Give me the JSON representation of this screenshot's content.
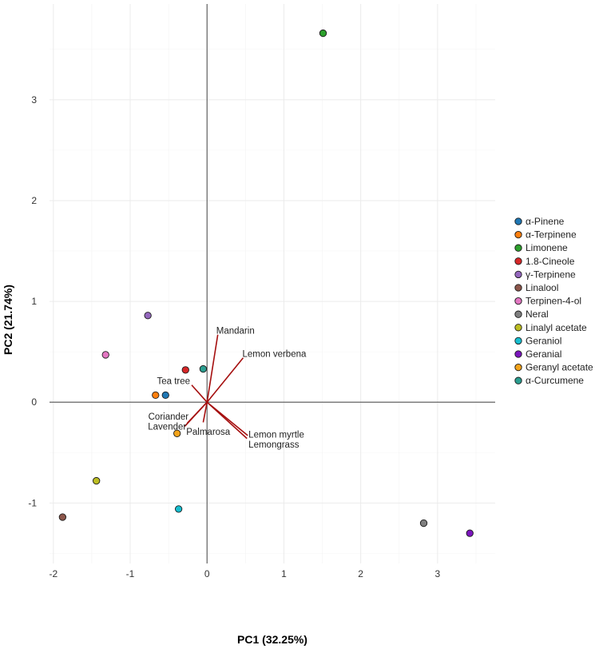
{
  "chart_data": {
    "type": "scatter",
    "title": "",
    "xlabel": "PC1 (32.25%)",
    "ylabel": "PC2 (21.74%)",
    "xlim": [
      -2.05,
      3.75
    ],
    "ylim": [
      -1.6,
      3.95
    ],
    "xticks": [
      -2,
      -1,
      0,
      1,
      2,
      3
    ],
    "yticks": [
      -1,
      0,
      1,
      2,
      3
    ],
    "grid": true,
    "legend_position": "right",
    "points": [
      {
        "name": "α-Pinene",
        "x": -0.54,
        "y": 0.07,
        "color": "#1f77b4"
      },
      {
        "name": "α-Terpinene",
        "x": -0.67,
        "y": 0.07,
        "color": "#ff7f0e"
      },
      {
        "name": "Limonene",
        "x": 1.51,
        "y": 3.66,
        "color": "#2ca02c"
      },
      {
        "name": "1.8-Cineole",
        "x": -0.28,
        "y": 0.32,
        "color": "#d62728"
      },
      {
        "name": "γ-Terpinene",
        "x": -0.77,
        "y": 0.86,
        "color": "#9467bd"
      },
      {
        "name": "Linalool",
        "x": -1.88,
        "y": -1.14,
        "color": "#8c564b"
      },
      {
        "name": "Terpinen-4-ol",
        "x": -1.32,
        "y": 0.47,
        "color": "#e377c2"
      },
      {
        "name": "Neral",
        "x": 2.82,
        "y": -1.2,
        "color": "#7f7f7f"
      },
      {
        "name": "Linalyl acetate",
        "x": -1.44,
        "y": -0.78,
        "color": "#bcbd22"
      },
      {
        "name": "Geraniol",
        "x": -0.37,
        "y": -1.06,
        "color": "#17becf"
      },
      {
        "name": "Geranial",
        "x": 3.42,
        "y": -1.3,
        "color": "#7b15bd"
      },
      {
        "name": "Geranyl acetate",
        "x": -0.39,
        "y": -0.31,
        "color": "#f2a31b"
      },
      {
        "name": "α-Curcumene",
        "x": -0.05,
        "y": 0.33,
        "color": "#2a9d8f"
      }
    ],
    "loadings": [
      {
        "name": "Mandarin",
        "x": 0.14,
        "y": 0.67,
        "label_x": 0.12,
        "label_y": 0.71,
        "anchor": "start"
      },
      {
        "name": "Lemon verbena",
        "x": 0.47,
        "y": 0.44,
        "label_x": 0.46,
        "label_y": 0.48,
        "anchor": "start"
      },
      {
        "name": "Tea tree",
        "x": -0.2,
        "y": 0.17,
        "label_x": -0.22,
        "label_y": 0.21,
        "anchor": "end"
      },
      {
        "name": "Coriander",
        "x": -0.26,
        "y": -0.21,
        "label_x": -0.24,
        "label_y": -0.14,
        "anchor": "end"
      },
      {
        "name": "Lavender",
        "x": -0.29,
        "y": -0.24,
        "label_x": -0.27,
        "label_y": -0.24,
        "anchor": "end"
      },
      {
        "name": "Palmarosa",
        "x": -0.05,
        "y": -0.2,
        "label_x": -0.27,
        "label_y": -0.29,
        "anchor": "start"
      },
      {
        "name": "Lemon myrtle",
        "x": 0.53,
        "y": -0.33,
        "label_x": 0.54,
        "label_y": -0.32,
        "anchor": "start"
      },
      {
        "name": "Lemongrass",
        "x": 0.52,
        "y": -0.36,
        "label_x": 0.54,
        "label_y": -0.42,
        "anchor": "start"
      }
    ],
    "reference_lines": {
      "x": 0,
      "y": 0
    },
    "loading_color": "#a50f0f",
    "grid_color": "#ebebeb",
    "axis_line_color": "#555555"
  }
}
